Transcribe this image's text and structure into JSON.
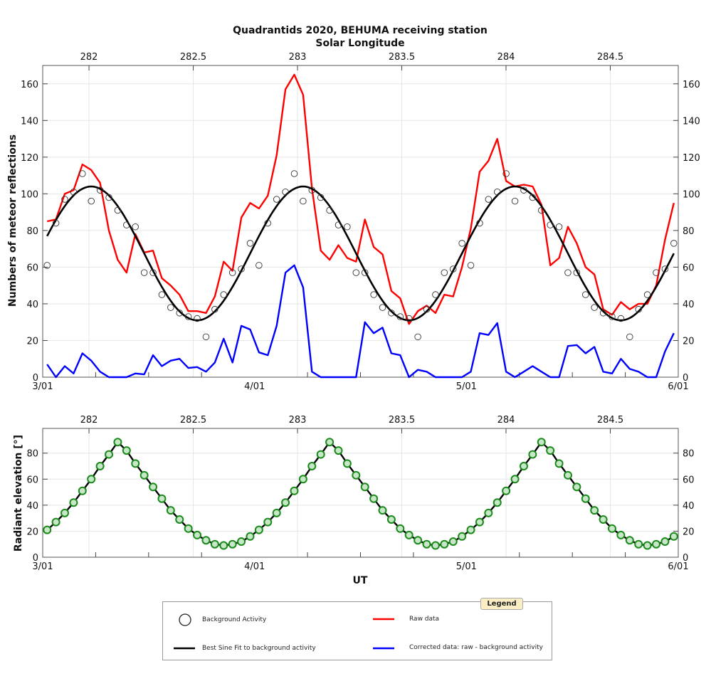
{
  "title": "Quadrantids 2020, BEHUMA receiving station",
  "colors": {
    "raw": "#ff0000",
    "corrected": "#0000ff",
    "fit": "#000000",
    "background": "#333333",
    "elevation_fill": "#c8e6c8",
    "elevation_stroke": "#1a8a1a",
    "legend_tab": "#fbeec5"
  },
  "chart_data": [
    {
      "type": "line",
      "top_axis": {
        "label": "Solar Longitude",
        "ticks": [
          "282",
          "282.5",
          "283",
          "283.5",
          "284",
          "284.5"
        ],
        "range": [
          281.778,
          284.826
        ]
      },
      "ylabel": "Numbers of meteor reflections",
      "ylim": [
        0,
        170
      ],
      "yticks": [
        "0",
        "20",
        "40",
        "60",
        "80",
        "100",
        "120",
        "140",
        "160"
      ],
      "xticks": [
        "3/01",
        "4/01",
        "5/01",
        "6/01"
      ],
      "grid": true,
      "x": [
        "3/01 00:30",
        "3/01 01:30",
        "3/01 02:30",
        "3/01 03:30",
        "3/01 04:30",
        "3/01 05:30",
        "3/01 06:30",
        "3/01 07:30",
        "3/01 08:30",
        "3/01 09:30",
        "3/01 10:30",
        "3/01 11:30",
        "3/01 12:30",
        "3/01 13:30",
        "3/01 14:30",
        "3/01 15:30",
        "3/01 16:30",
        "3/01 17:30",
        "3/01 18:30",
        "3/01 19:30",
        "3/01 20:30",
        "3/01 21:30",
        "3/01 22:30",
        "3/01 23:30",
        "4/01 00:30",
        "4/01 01:30",
        "4/01 02:30",
        "4/01 03:30",
        "4/01 04:30",
        "4/01 05:30",
        "4/01 06:30",
        "4/01 07:30",
        "4/01 08:30",
        "4/01 09:30",
        "4/01 10:30",
        "4/01 11:30",
        "4/01 12:30",
        "4/01 13:30",
        "4/01 14:30",
        "4/01 15:30",
        "4/01 16:30",
        "4/01 17:30",
        "4/01 18:30",
        "4/01 19:30",
        "4/01 20:30",
        "4/01 21:30",
        "4/01 22:30",
        "4/01 23:30",
        "5/01 00:30",
        "5/01 01:30",
        "5/01 02:30",
        "5/01 03:30",
        "5/01 04:30",
        "5/01 05:30",
        "5/01 06:30",
        "5/01 07:30",
        "5/01 08:30",
        "5/01 09:30",
        "5/01 10:30",
        "5/01 11:30",
        "5/01 12:30",
        "5/01 13:30",
        "5/01 14:30",
        "5/01 15:30",
        "5/01 16:30",
        "5/01 17:30",
        "5/01 18:30",
        "5/01 19:30",
        "5/01 20:30",
        "5/01 21:30",
        "5/01 22:30",
        "5/01 23:30"
      ],
      "series": [
        {
          "name": "Raw data",
          "style": "line",
          "color": "#ff0000",
          "values": [
            85,
            86,
            100,
            102,
            116,
            113,
            106,
            80,
            64,
            57,
            78,
            68,
            69,
            54,
            50,
            45,
            36,
            36,
            35,
            44,
            63,
            58,
            87,
            95,
            92,
            99,
            121,
            157,
            165,
            154,
            103,
            69,
            64,
            72,
            65,
            63,
            86,
            71,
            67,
            47,
            43,
            29,
            36,
            39,
            35,
            45,
            44,
            60,
            81,
            112,
            118,
            130,
            107,
            104,
            105,
            104,
            94,
            61,
            65,
            82,
            73,
            60,
            56,
            37,
            34,
            41,
            37,
            40,
            40,
            50,
            75,
            95
          ]
        },
        {
          "name": "Corrected data: raw - background activity",
          "style": "line",
          "color": "#0000ff",
          "values": [
            7,
            0,
            6,
            2,
            13,
            9,
            3,
            0,
            0,
            0,
            2,
            1.5,
            12,
            6,
            9,
            10,
            5,
            5.5,
            3,
            8,
            21,
            8,
            28,
            26,
            13.5,
            12,
            28,
            57,
            61,
            49,
            3,
            0,
            0,
            0,
            0,
            0,
            30,
            24,
            27,
            13,
            12,
            0,
            4,
            3,
            0,
            0,
            0,
            0,
            3,
            24,
            23,
            29.5,
            3,
            0,
            3,
            6,
            3,
            0,
            0,
            17,
            17.5,
            13,
            16.5,
            3,
            2,
            10,
            4.5,
            3,
            0,
            0,
            14,
            24
          ]
        },
        {
          "name": "Background Activity",
          "style": "open-circle",
          "color": "#333333",
          "values": [
            61,
            84,
            97,
            101,
            111,
            96,
            102,
            98,
            91,
            83,
            82,
            57,
            57,
            45,
            38,
            35,
            33,
            32,
            22,
            37,
            45,
            57,
            59,
            73,
            61,
            84,
            97,
            101,
            111,
            96,
            102,
            98,
            91,
            83,
            82,
            57,
            57,
            45,
            38,
            35,
            33,
            32,
            22,
            37,
            45,
            57,
            59,
            73,
            61,
            84,
            97,
            101,
            111,
            96,
            102,
            98,
            91,
            83,
            82,
            57,
            57,
            45,
            38,
            35,
            33,
            32,
            22,
            37,
            45,
            57,
            59,
            73
          ]
        },
        {
          "name": "Best Sine Fit to background activity",
          "style": "line",
          "color": "#000000",
          "fit": {
            "mean": 67.5,
            "amplitude": 36.5,
            "period_hours": 24,
            "peak_ut": "05:30"
          }
        }
      ]
    },
    {
      "type": "line",
      "top_axis": {
        "ticks": [
          "282",
          "282.5",
          "283",
          "283.5",
          "284",
          "284.5"
        ],
        "range": [
          281.778,
          284.826
        ]
      },
      "ylabel": "Radiant elevation [°]",
      "xlabel": "UT",
      "ylim": [
        0,
        99
      ],
      "yticks": [
        "0",
        "20",
        "40",
        "60",
        "80"
      ],
      "xticks": [
        "3/01",
        "4/01",
        "5/01",
        "6/01"
      ],
      "grid": true,
      "series": [
        {
          "style": "line-marker",
          "color": "#1a8a1a",
          "values": [
            21,
            27,
            34,
            42,
            51,
            60,
            70,
            79,
            88.5,
            82,
            72,
            63,
            54,
            45,
            36,
            29,
            22,
            17,
            13,
            10,
            9,
            10,
            12,
            16,
            21,
            27,
            34,
            42,
            51,
            60,
            70,
            79,
            88.5,
            82,
            72,
            63,
            54,
            45,
            36,
            29,
            22,
            17,
            13,
            10,
            9,
            10,
            12,
            16,
            21,
            27,
            34,
            42,
            51,
            60,
            70,
            79,
            88.5,
            82,
            72,
            63,
            54,
            45,
            36,
            29,
            22,
            17,
            13,
            10,
            9,
            10,
            12,
            16
          ]
        }
      ]
    }
  ],
  "legend": {
    "title": "Legend",
    "items": [
      "Background Activity",
      "Raw data",
      "Best Sine Fit to background activity",
      "Corrected data: raw - background activity"
    ]
  }
}
